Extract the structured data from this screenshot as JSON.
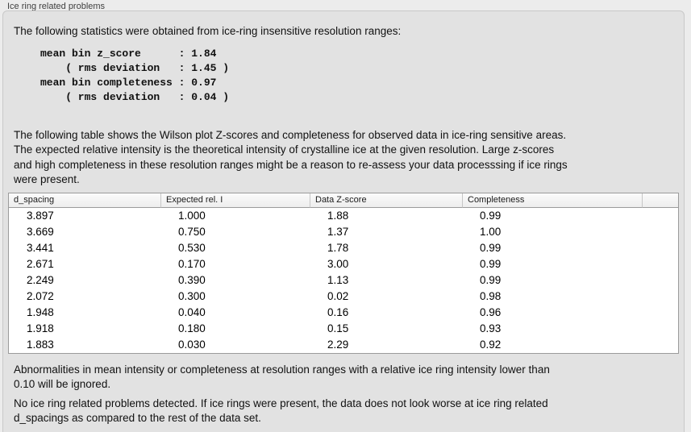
{
  "header": {
    "title": "Ice ring related problems"
  },
  "panel": {
    "intro": "The following statistics were obtained from ice-ring insensitive resolution ranges:",
    "summary_stats": "mean bin z_score      : 1.84\n    ( rms deviation   : 1.45 )\nmean bin completeness : 0.97\n    ( rms deviation   : 0.04 )",
    "table_note": "The following table shows the Wilson plot Z-scores and completeness for observed data in ice-ring sensitive areas.\nThe expected relative intensity is the theoretical intensity of crystalline ice at the given resolution. Large z-scores\nand high completeness in these resolution ranges might be a reason to re-assess your data processsing if ice rings\nwere present.",
    "table": {
      "columns": [
        "d_spacing",
        "Expected rel. I",
        "Data Z-score",
        "Completeness",
        ""
      ],
      "rows": [
        [
          "3.897",
          "1.000",
          "1.88",
          "0.99",
          ""
        ],
        [
          "3.669",
          "0.750",
          "1.37",
          "1.00",
          ""
        ],
        [
          "3.441",
          "0.530",
          "1.78",
          "0.99",
          ""
        ],
        [
          "2.671",
          "0.170",
          "3.00",
          "0.99",
          ""
        ],
        [
          "2.249",
          "0.390",
          "1.13",
          "0.99",
          ""
        ],
        [
          "2.072",
          "0.300",
          "0.02",
          "0.98",
          ""
        ],
        [
          "1.948",
          "0.040",
          "0.16",
          "0.96",
          ""
        ],
        [
          "1.918",
          "0.180",
          "0.15",
          "0.93",
          ""
        ],
        [
          "1.883",
          "0.030",
          "2.29",
          "0.92",
          ""
        ]
      ]
    },
    "ignore_note": "Abnormalities in mean intensity or completeness at resolution ranges with a relative ice ring intensity lower than\n0.10 will be ignored.",
    "conclusion": "No ice ring related problems detected. If ice rings were present, the data does not look worse at ice ring related\nd_spacings as compared to the rest of the data set."
  },
  "colors": {
    "page_bg": "#ececec",
    "panel_bg": "#e2e2e2",
    "table_border": "#9b9b9b",
    "header_separator": "#c6c6c6"
  }
}
